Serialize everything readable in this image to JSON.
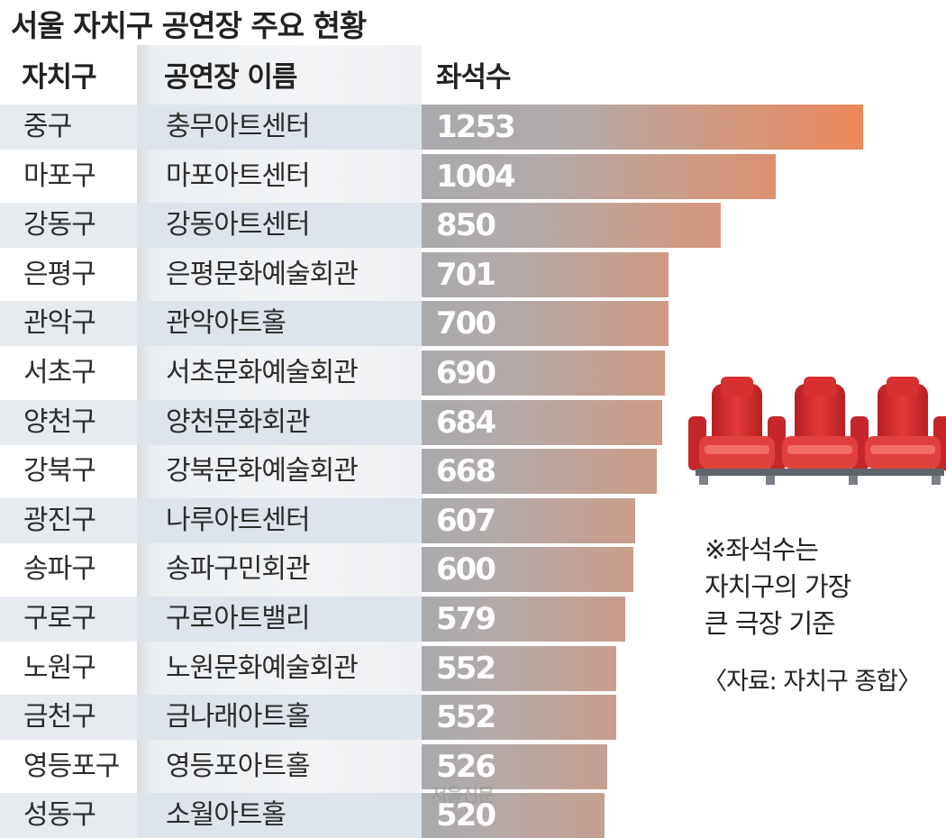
{
  "title": "서울 자치구 공연장 주요 현황",
  "headers": {
    "district": "자치구",
    "venue": "공연장 이름",
    "seats": "좌석수"
  },
  "note": [
    "※좌석수는",
    "자치구의 가장",
    "큰 극장 기준"
  ],
  "source": "〈자료: 자치구 종합〉",
  "watermark": "서울신문",
  "icons": {
    "seats": "theater-seats-icon"
  },
  "colors": {
    "bar_start": "#a9a9ad",
    "bar_end": "#ee875a",
    "seat_red": "#d52b2b"
  },
  "chart_data": {
    "type": "bar",
    "orientation": "horizontal",
    "categories": [
      "중구",
      "마포구",
      "강동구",
      "은평구",
      "관악구",
      "서초구",
      "양천구",
      "강북구",
      "광진구",
      "송파구",
      "구로구",
      "노원구",
      "금천구",
      "영등포구",
      "성동구"
    ],
    "venues": [
      "충무아트센터",
      "마포아트센터",
      "강동아트센터",
      "은평문화예술회관",
      "관악아트홀",
      "서초문화예술회관",
      "양천문화회관",
      "강북문화예술회관",
      "나루아트센터",
      "송파구민회관",
      "구로아트밸리",
      "노원문화예술회관",
      "금나래아트홀",
      "영등포아트홀",
      "소월아트홀"
    ],
    "values": [
      1253,
      1004,
      850,
      701,
      700,
      690,
      684,
      668,
      607,
      600,
      579,
      552,
      552,
      526,
      520
    ],
    "labels": [
      "1253",
      "1004",
      "850",
      "701",
      "700",
      "690",
      "684",
      "668",
      "607",
      "600",
      "579",
      "552",
      "552",
      "526",
      "520"
    ],
    "title": "서울 자치구 공연장 주요 현황",
    "xlabel": "",
    "ylabel": "",
    "legend": "none",
    "grid": false
  }
}
